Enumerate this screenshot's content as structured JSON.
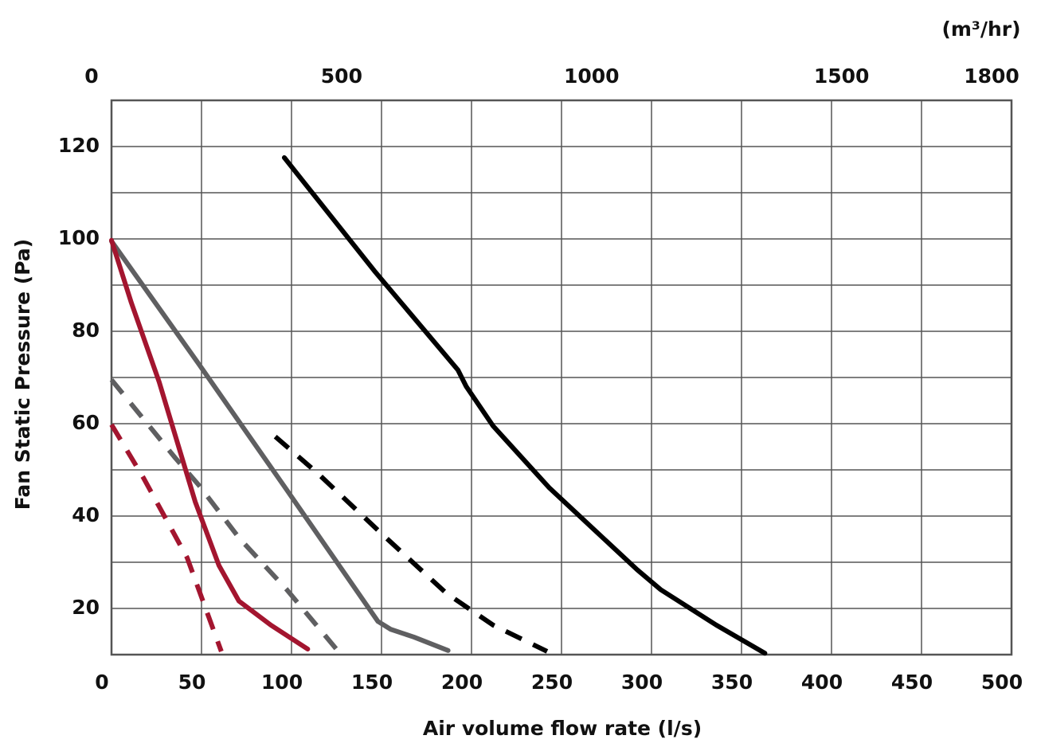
{
  "chart_data": {
    "type": "line",
    "x_label": "Air volume flow rate (l/s)",
    "y_label": "Fan Static Pressure (Pa)",
    "x2_label": "(m³/hr)",
    "xlim": [
      0,
      500
    ],
    "xticks": [
      0,
      50,
      100,
      150,
      200,
      250,
      300,
      350,
      400,
      450,
      500
    ],
    "x2lim": [
      0,
      1800
    ],
    "x2ticks": [
      0,
      500,
      1000,
      1500,
      1800
    ],
    "ylim": [
      10,
      130
    ],
    "yticks": [
      20,
      40,
      60,
      80,
      100,
      120
    ],
    "y_minor_ticks": [
      30,
      50,
      70,
      90,
      110
    ],
    "grid": true,
    "series": [
      {
        "color": "#000000",
        "dashed": false,
        "x": [
          96,
          146,
          192.5,
          197,
          212,
          243,
          268,
          292,
          305,
          336,
          363
        ],
        "values": [
          117.6,
          93.1,
          71.6,
          68.1,
          59.5,
          46.2,
          37.1,
          28.4,
          24.1,
          16.4,
          10.3
        ]
      },
      {
        "color": "#000000",
        "dashed": true,
        "x": [
          91,
          115,
          150,
          186,
          212,
          242
        ],
        "values": [
          57.2,
          49.1,
          36.2,
          23.3,
          16.4,
          10.7
        ]
      },
      {
        "color": "#5f5f61",
        "dashed": false,
        "x": [
          0,
          48.7,
          97.3,
          148,
          155,
          168,
          187
        ],
        "values": [
          99.5,
          72.8,
          45.7,
          17.2,
          15.5,
          13.8,
          10.9
        ]
      },
      {
        "color": "#5f5f61",
        "dashed": true,
        "x": [
          0,
          35.4,
          48.7,
          70.8,
          97.3,
          126
        ],
        "values": [
          69.5,
          52.6,
          46.6,
          35.3,
          24.1,
          10.7
        ]
      },
      {
        "color": "#a3152f",
        "dashed": false,
        "x": [
          0,
          11,
          26.5,
          46.5,
          59.7,
          70.8,
          88.5,
          109
        ],
        "values": [
          99.7,
          86.2,
          69,
          43.1,
          29.3,
          21.6,
          16.4,
          11.2
        ]
      },
      {
        "color": "#a3152f",
        "dashed": true,
        "x": [
          0,
          17.7,
          42,
          61
        ],
        "values": [
          59.8,
          48.3,
          31,
          10.7
        ]
      }
    ]
  }
}
